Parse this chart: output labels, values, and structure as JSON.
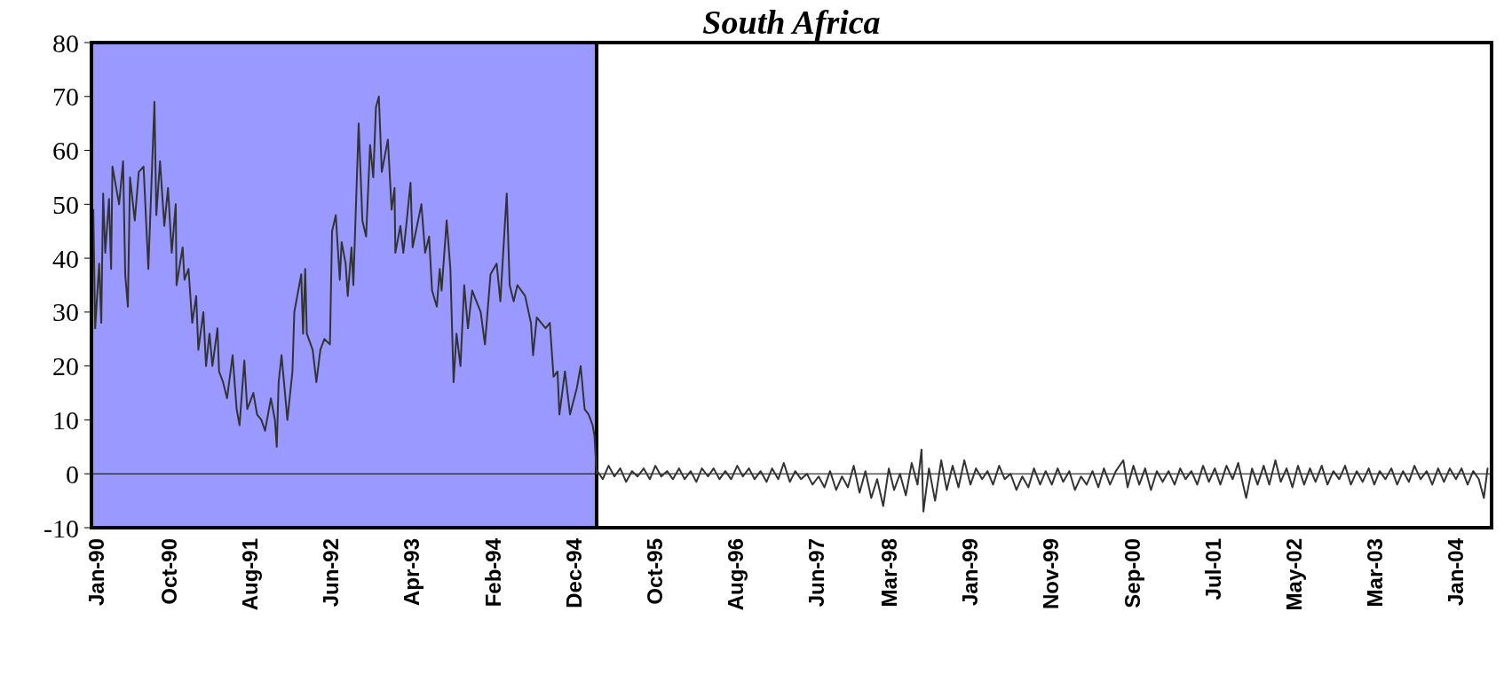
{
  "chart_data": {
    "type": "line",
    "title": "South Africa",
    "xlim": [
      "1989-12-13",
      "2004-05-14"
    ],
    "xticks": [
      {
        "value": "1990-01-01",
        "label": "Jan-90"
      },
      {
        "value": "1990-10-01",
        "label": "Oct-90"
      },
      {
        "value": "1991-08-01",
        "label": "Aug-91"
      },
      {
        "value": "1992-06-01",
        "label": "Jun-92"
      },
      {
        "value": "1993-04-01",
        "label": "Apr-93"
      },
      {
        "value": "1994-02-01",
        "label": "Feb-94"
      },
      {
        "value": "1994-12-01",
        "label": "Dec-94"
      },
      {
        "value": "1995-10-01",
        "label": "Oct-95"
      },
      {
        "value": "1996-08-01",
        "label": "Aug-96"
      },
      {
        "value": "1997-06-01",
        "label": "Jun-97"
      },
      {
        "value": "1998-03-01",
        "label": "Mar-98"
      },
      {
        "value": "1999-01-01",
        "label": "Jan-99"
      },
      {
        "value": "1999-11-01",
        "label": "Nov-99"
      },
      {
        "value": "2000-09-01",
        "label": "Sep-00"
      },
      {
        "value": "2001-07-01",
        "label": "Jul-01"
      },
      {
        "value": "2002-05-01",
        "label": "May-02"
      },
      {
        "value": "2003-03-01",
        "label": "Mar-03"
      },
      {
        "value": "2004-01-01",
        "label": "Jan-04"
      }
    ],
    "ylim": [
      -10,
      80
    ],
    "yticks": [
      -10,
      0,
      10,
      20,
      30,
      40,
      50,
      60,
      70,
      80
    ],
    "grid": false,
    "line_style": "solid",
    "marker": "none",
    "bands": [
      {
        "axis": "x",
        "from": "1989-12-13",
        "to": "1995-02-25",
        "color": "#9999ff"
      }
    ],
    "ref_lines": [
      {
        "axis": "y",
        "value": 0,
        "color": "#000000"
      },
      {
        "axis": "x",
        "value": "1995-02-25",
        "color": "#000000"
      }
    ],
    "series": [
      {
        "color": "#333333",
        "x": [
          "1989-12-20",
          "1989-12-27",
          "1990-01-11",
          "1990-01-19",
          "1990-01-26",
          "1990-02-03",
          "1990-02-17",
          "1990-02-25",
          "1990-03-02",
          "1990-03-27",
          "1990-04-11",
          "1990-04-19",
          "1990-04-29",
          "1990-05-07",
          "1990-05-25",
          "1990-06-09",
          "1990-06-27",
          "1990-07-15",
          "1990-08-07",
          "1990-08-14",
          "1990-08-28",
          "1990-09-13",
          "1990-09-27",
          "1990-10-11",
          "1990-10-26",
          "1990-10-29",
          "1990-11-21",
          "1990-11-28",
          "1990-12-13",
          "1990-12-27",
          "1991-01-11",
          "1991-01-19",
          "1991-02-07",
          "1991-02-17",
          "1991-03-02",
          "1991-03-13",
          "1991-04-01",
          "1991-04-07",
          "1991-04-22",
          "1991-05-07",
          "1991-05-28",
          "1991-06-12",
          "1991-06-23",
          "1991-07-11",
          "1991-07-22",
          "1991-08-14",
          "1991-08-28",
          "1991-09-13",
          "1991-09-27",
          "1991-10-19",
          "1991-11-03",
          "1991-11-10",
          "1991-11-17",
          "1991-11-28",
          "1991-12-09",
          "1991-12-20",
          "1992-01-08",
          "1992-01-15",
          "1992-02-10",
          "1992-02-17",
          "1992-02-25",
          "1992-03-02",
          "1992-03-24",
          "1992-04-07",
          "1992-04-22",
          "1992-05-07",
          "1992-05-28",
          "1992-06-05",
          "1992-06-19",
          "1992-07-04",
          "1992-07-11",
          "1992-07-26",
          "1992-08-03",
          "1992-08-17",
          "1992-08-24",
          "1992-09-13",
          "1992-09-27",
          "1992-10-11",
          "1992-10-26",
          "1992-11-07",
          "1992-11-17",
          "1992-11-28",
          "1992-12-09",
          "1993-01-01",
          "1993-01-15",
          "1993-01-26",
          "1993-01-29",
          "1993-02-17",
          "1993-02-28",
          "1993-03-13",
          "1993-03-27",
          "1993-04-04",
          "1993-05-07",
          "1993-05-21",
          "1993-06-05",
          "1993-06-16",
          "1993-07-04",
          "1993-07-15",
          "1993-07-22",
          "1993-08-10",
          "1993-08-24",
          "1993-09-05",
          "1993-09-16",
          "1993-10-01",
          "1993-10-15",
          "1993-10-29",
          "1993-11-14",
          "1993-12-16",
          "1994-01-01",
          "1994-01-22",
          "1994-02-14",
          "1994-02-28",
          "1994-03-13",
          "1994-03-24",
          "1994-04-04",
          "1994-04-19",
          "1994-05-03",
          "1994-06-01",
          "1994-06-23",
          "1994-07-01",
          "1994-07-15",
          "1994-08-17",
          "1994-09-02",
          "1994-09-16",
          "1994-10-01",
          "1994-10-08",
          "1994-10-29",
          "1994-11-17",
          "1994-12-13",
          "1994-12-27",
          "1995-01-11",
          "1995-01-26",
          "1995-02-10",
          "1995-02-17",
          "1995-02-25",
          "1995-02-28",
          "1995-03-20",
          "1995-04-11",
          "1995-05-03",
          "1995-05-25",
          "1995-06-16",
          "1995-07-08",
          "1995-07-29",
          "1995-08-21",
          "1995-09-13",
          "1995-10-04",
          "1995-10-26",
          "1995-11-17",
          "1995-12-09",
          "1996-01-01",
          "1996-01-22",
          "1996-02-14",
          "1996-03-06",
          "1996-03-27",
          "1996-04-19",
          "1996-05-10",
          "1996-06-01",
          "1996-06-23",
          "1996-07-15",
          "1996-08-07",
          "1996-08-28",
          "1996-09-20",
          "1996-10-11",
          "1996-11-03",
          "1996-11-25",
          "1996-12-16",
          "1997-01-08",
          "1997-01-29",
          "1997-02-21",
          "1997-03-13",
          "1997-04-04",
          "1997-04-26",
          "1997-05-17",
          "1997-06-09",
          "1997-07-01",
          "1997-07-22",
          "1997-08-14",
          "1997-09-05",
          "1997-09-27",
          "1997-10-19",
          "1997-11-10",
          "1997-12-02",
          "1997-12-24",
          "1998-01-15",
          "1998-02-07",
          "1998-02-28",
          "1998-03-20",
          "1998-04-11",
          "1998-05-03",
          "1998-05-25",
          "1998-06-16",
          "1998-07-01",
          "1998-07-08",
          "1998-07-29",
          "1998-08-21",
          "1998-09-13",
          "1998-10-04",
          "1998-10-26",
          "1998-11-17",
          "1998-12-09",
          "1999-01-01",
          "1999-01-22",
          "1999-02-14",
          "1999-03-06",
          "1999-03-27",
          "1999-04-19",
          "1999-05-10",
          "1999-06-01",
          "1999-06-23",
          "1999-07-15",
          "1999-08-07",
          "1999-08-28",
          "1999-09-20",
          "1999-10-11",
          "1999-11-03",
          "1999-11-25",
          "1999-12-16",
          "2000-01-08",
          "2000-01-29",
          "2000-02-21",
          "2000-03-13",
          "2000-04-04",
          "2000-04-26",
          "2000-05-17",
          "2000-06-09",
          "2000-07-01",
          "2000-07-29",
          "2000-08-14",
          "2000-09-05",
          "2000-09-27",
          "2000-10-19",
          "2000-11-10",
          "2000-12-02",
          "2000-12-24",
          "2001-01-15",
          "2001-02-07",
          "2001-02-28",
          "2001-03-20",
          "2001-04-11",
          "2001-05-03",
          "2001-05-25",
          "2001-06-16",
          "2001-07-08",
          "2001-07-29",
          "2001-08-21",
          "2001-09-13",
          "2001-10-04",
          "2001-11-03",
          "2001-11-25",
          "2001-12-16",
          "2002-01-08",
          "2002-01-29",
          "2002-02-21",
          "2002-03-13",
          "2002-04-04",
          "2002-04-26",
          "2002-05-17",
          "2002-06-09",
          "2002-07-01",
          "2002-07-22",
          "2002-08-14",
          "2002-09-05",
          "2002-09-27",
          "2002-10-19",
          "2002-11-10",
          "2002-12-02",
          "2002-12-24",
          "2003-01-15",
          "2003-02-07",
          "2003-02-28",
          "2003-03-20",
          "2003-04-11",
          "2003-05-03",
          "2003-05-25",
          "2003-06-16",
          "2003-07-08",
          "2003-07-29",
          "2003-08-21",
          "2003-09-13",
          "2003-10-04",
          "2003-10-26",
          "2003-11-17",
          "2003-12-09",
          "2004-01-01",
          "2004-01-22",
          "2004-02-14",
          "2004-03-06",
          "2004-03-27",
          "2004-04-15",
          "2004-04-29"
        ],
        "values": [
          49,
          27,
          39,
          28,
          52,
          41,
          51,
          38,
          57,
          50,
          58,
          37,
          31,
          55,
          47,
          56,
          57,
          38,
          69,
          48,
          58,
          46,
          53,
          41,
          50,
          35,
          42,
          36,
          38,
          28,
          33,
          23,
          30,
          20,
          26,
          20,
          27,
          19,
          17,
          14,
          22,
          12,
          9,
          21,
          12,
          15,
          11,
          10,
          8,
          14,
          10,
          5,
          17,
          22,
          16,
          10,
          19,
          30,
          37,
          26,
          38,
          26,
          23,
          17,
          23,
          25,
          24,
          45,
          48,
          36,
          43,
          39,
          33,
          42,
          35,
          65,
          47,
          44,
          61,
          55,
          68,
          70,
          56,
          62,
          49,
          53,
          41,
          46,
          41,
          47,
          54,
          42,
          50,
          41,
          44,
          34,
          31,
          38,
          34,
          47,
          38,
          17,
          26,
          20,
          35,
          27,
          34,
          30,
          24,
          37,
          39,
          32,
          43,
          52,
          35,
          32,
          35,
          33,
          28,
          22,
          29,
          27,
          28,
          18,
          19,
          11,
          19,
          11,
          16,
          20,
          12,
          11,
          9,
          7,
          0,
          0.5,
          -1,
          1.5,
          -0.5,
          1,
          -1.5,
          0.5,
          -0.5,
          1,
          -1,
          1.5,
          -0.5,
          0.5,
          -1,
          1,
          -1,
          0.5,
          -1.5,
          1,
          -0.5,
          1,
          -1,
          0.5,
          -1,
          1.5,
          -0.5,
          1,
          -1,
          0.5,
          -1.5,
          1,
          -1,
          2,
          -1.5,
          0.5,
          -1,
          0,
          -2,
          -0.5,
          -2.5,
          0.5,
          -3,
          -0.5,
          -2.5,
          1.5,
          -3.5,
          0.5,
          -4.5,
          -1,
          -6,
          1,
          -3,
          0,
          -4,
          2,
          -2,
          4.5,
          -7,
          1,
          -5,
          2.5,
          -3,
          1.5,
          -2.5,
          2.5,
          -2,
          1,
          -1,
          0.5,
          -2,
          1.5,
          -1,
          0,
          -3,
          -0.5,
          -2.5,
          1,
          -2,
          0.5,
          -2,
          1,
          -1.5,
          0.5,
          -3,
          -0.5,
          -2,
          0.5,
          -2.5,
          1,
          -2,
          0.5,
          2.5,
          -2.5,
          1.5,
          -2,
          1,
          -3,
          0.5,
          -1.5,
          0.5,
          -2,
          1,
          -1,
          0.5,
          -2,
          1.5,
          -1.5,
          1,
          -2,
          1.5,
          -1,
          2,
          -4.5,
          1,
          -2,
          1.5,
          -2,
          2.5,
          -1.5,
          1,
          -2.5,
          1.5,
          -2,
          1,
          -1.5,
          1.5,
          -2,
          0.5,
          -1,
          1.5,
          -2,
          0.5,
          -1.5,
          1,
          -2,
          0.5,
          -1,
          1,
          -2,
          0.5,
          -1.5,
          1.5,
          -1,
          0.5,
          -2,
          1,
          -1.5,
          1,
          -1,
          1,
          -2,
          0.5,
          -1,
          -4.5,
          1
        ]
      }
    ]
  }
}
